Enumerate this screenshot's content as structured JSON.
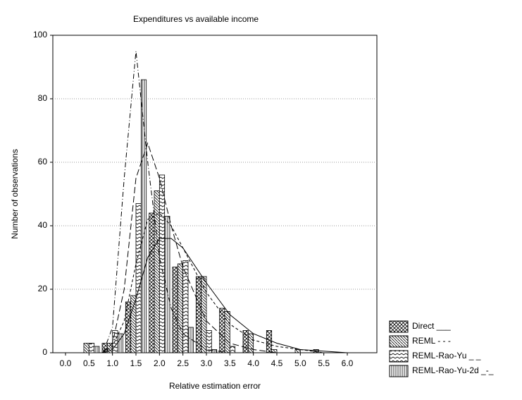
{
  "chart_data": {
    "type": "bar",
    "title": "Expenditures vs available income",
    "x_label": "Relative estimation error",
    "y_label": "Number of observations",
    "x": [
      0,
      0.5,
      1,
      1.5,
      2,
      2.5,
      3,
      3.5,
      4,
      4.5,
      5,
      5.5,
      6
    ],
    "xlim": [
      -0.27,
      6.63
    ],
    "xticks": [
      {
        "value": 0,
        "label": "0.0"
      },
      {
        "value": 0.5,
        "label": "0.5"
      },
      {
        "value": 1,
        "label": "1.0"
      },
      {
        "value": 1.5,
        "label": "1.5"
      },
      {
        "value": 2,
        "label": "2.0"
      },
      {
        "value": 2.5,
        "label": "2.5"
      },
      {
        "value": 3,
        "label": "3.0"
      },
      {
        "value": 3.5,
        "label": "3.5"
      },
      {
        "value": 4,
        "label": "4.0"
      },
      {
        "value": 4.5,
        "label": "4.5"
      },
      {
        "value": 5,
        "label": "5.0"
      },
      {
        "value": 5.5,
        "label": "5.5"
      },
      {
        "value": 6,
        "label": "6.0"
      }
    ],
    "ylim": [
      0,
      100
    ],
    "yticks": [
      0,
      20,
      40,
      60,
      80,
      100
    ],
    "grid": true,
    "legend": "bottom-right",
    "series": [
      {
        "name": "Direct ___",
        "color": "#000000",
        "pattern": "crosshatch",
        "dash": "solid",
        "values": [
          0,
          0,
          3,
          16,
          44,
          27,
          24,
          14,
          7,
          7,
          0,
          1,
          0
        ],
        "fit": {
          "x": [
            0.8,
            1,
            1.25,
            1.5,
            1.75,
            2,
            2.25,
            2.5,
            3,
            3.5,
            4,
            4.5,
            5,
            5.5,
            6
          ],
          "values": [
            0,
            1,
            6,
            17,
            30,
            36,
            36,
            33,
            22,
            12,
            6,
            3,
            1,
            0.5,
            0
          ]
        }
      },
      {
        "name": "REML - - -",
        "color": "#000000",
        "pattern": "backslash",
        "dash": "dashed",
        "values": [
          0,
          3,
          3,
          18,
          51,
          28,
          24,
          13,
          6,
          1,
          1,
          0,
          0
        ],
        "fit": {
          "x": [
            0.8,
            1,
            1.25,
            1.5,
            1.75,
            2,
            2.25,
            2.5,
            3,
            3.5,
            4,
            4.5,
            5,
            5.5,
            6
          ],
          "values": [
            0,
            2,
            10,
            28,
            42,
            44,
            40,
            33,
            19,
            9,
            4,
            2,
            1,
            0,
            0
          ]
        }
      },
      {
        "name": "REML-Rao-Yu _ _",
        "color": "#000000",
        "pattern": "zigzag",
        "dash": "longdash",
        "values": [
          0,
          3,
          7,
          47,
          56,
          29,
          7,
          2,
          0,
          0,
          0,
          0,
          0
        ],
        "fit": {
          "x": [
            0.8,
            1,
            1.25,
            1.5,
            1.75,
            2,
            2.25,
            2.5,
            3,
            3.5,
            4,
            4.5,
            5,
            5.5,
            6
          ],
          "values": [
            0,
            3,
            20,
            55,
            66,
            55,
            40,
            27,
            10,
            3,
            1,
            0,
            0,
            0,
            0
          ]
        }
      },
      {
        "name": "REML-Rao-Yu-2d _-_",
        "color": "#000000",
        "pattern": "vertical",
        "dash": "dashdot",
        "values": [
          0,
          2,
          6,
          86,
          43,
          8,
          1,
          0,
          0,
          0,
          0,
          0,
          0
        ],
        "fit": {
          "x": [
            0.8,
            1,
            1.25,
            1.5,
            1.75,
            2,
            2.25,
            2.5,
            3,
            3.5,
            4,
            4.5,
            5,
            5.5,
            6
          ],
          "values": [
            0,
            8,
            55,
            95,
            60,
            30,
            14,
            6,
            1,
            0,
            0,
            0,
            0,
            0,
            0
          ]
        }
      }
    ]
  }
}
